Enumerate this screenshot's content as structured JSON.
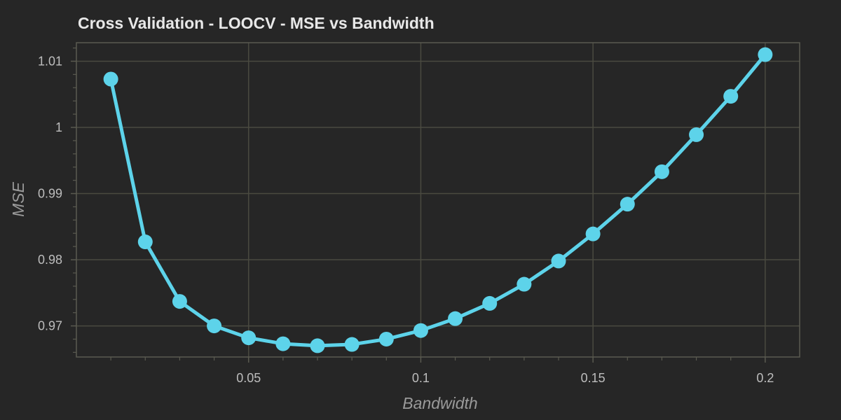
{
  "chart_data": {
    "type": "line",
    "title": "Cross Validation - LOOCV - MSE vs Bandwidth",
    "xlabel": "Bandwidth",
    "ylabel": "MSE",
    "xlim": [
      0.0,
      0.21
    ],
    "ylim": [
      0.9653,
      1.0128
    ],
    "xticks": [
      0.05,
      0.1,
      0.15,
      0.2
    ],
    "xtick_labels": [
      "0.05",
      "0.1",
      "0.15",
      "0.2"
    ],
    "yticks": [
      0.97,
      0.98,
      0.99,
      1.0,
      1.01
    ],
    "ytick_labels": [
      "0.97",
      "0.98",
      "0.99",
      "1",
      "1.01"
    ],
    "grid": true,
    "series": [
      {
        "name": "MSE",
        "color": "#5dd3ea",
        "x": [
          0.01,
          0.02,
          0.03,
          0.04,
          0.05,
          0.06,
          0.07,
          0.08,
          0.09,
          0.1,
          0.11,
          0.12,
          0.13,
          0.14,
          0.15,
          0.16,
          0.17,
          0.18,
          0.19,
          0.2
        ],
        "y": [
          1.0073,
          0.9827,
          0.9737,
          0.97,
          0.9682,
          0.9673,
          0.967,
          0.9672,
          0.968,
          0.9693,
          0.9711,
          0.9734,
          0.9763,
          0.9798,
          0.9839,
          0.9884,
          0.9933,
          0.9989,
          1.0047,
          1.011
        ]
      }
    ],
    "colors": {
      "background": "#262626",
      "grid": "#4a4a40",
      "frame": "#5a5a50",
      "line": "#5dd3ea"
    }
  }
}
